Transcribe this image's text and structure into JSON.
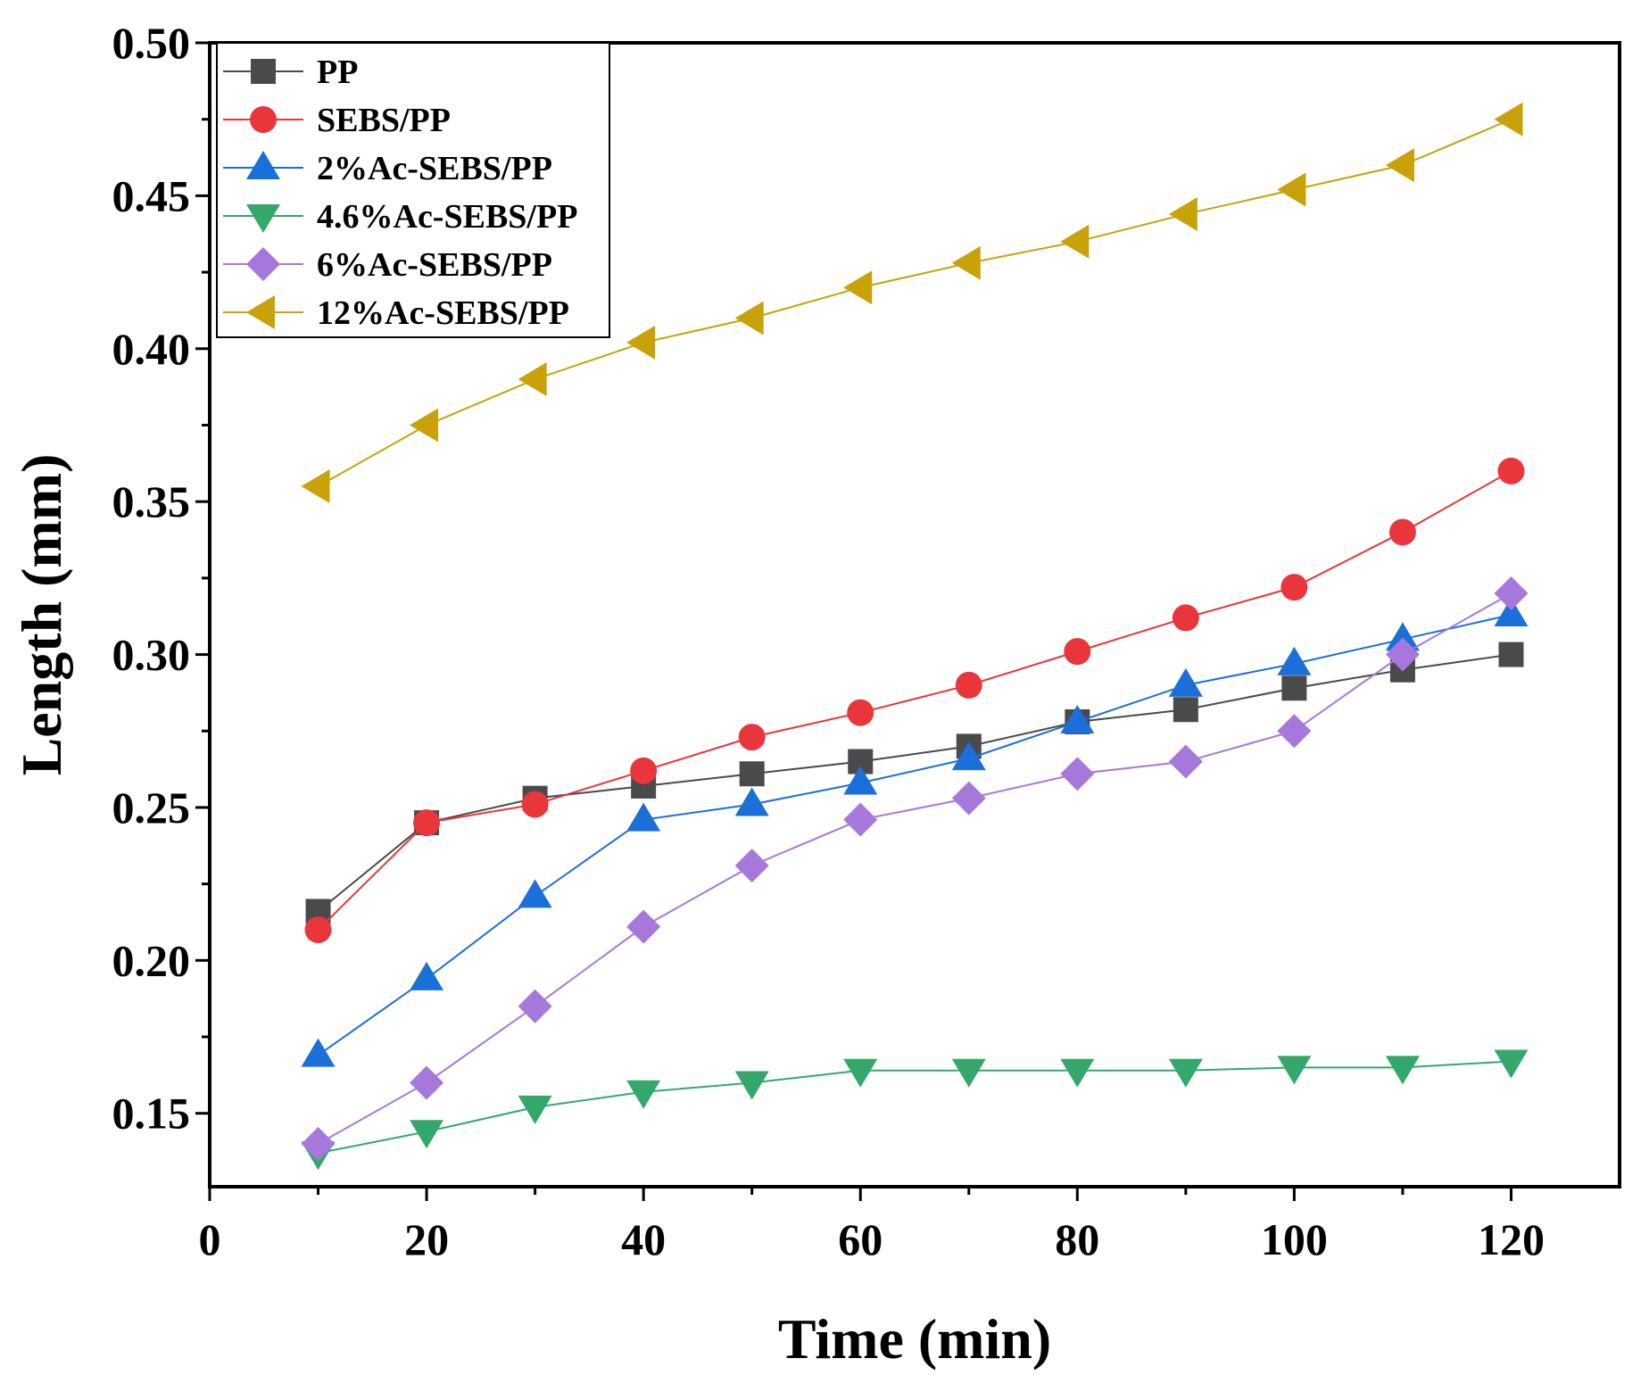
{
  "chart_data": {
    "type": "line",
    "title": "",
    "xlabel": "Time (min)",
    "ylabel": "Length (mm)",
    "xlim": [
      0,
      130
    ],
    "ylim": [
      0.126,
      0.5
    ],
    "xticks": [
      0,
      20,
      40,
      60,
      80,
      100,
      120
    ],
    "xtick_labels": [
      "0",
      "20",
      "40",
      "60",
      "80",
      "100",
      "120"
    ],
    "yticks": [
      0.15,
      0.2,
      0.25,
      0.3,
      0.35,
      0.4,
      0.45,
      0.5
    ],
    "ytick_labels": [
      "0.15",
      "0.20",
      "0.25",
      "0.30",
      "0.35",
      "0.40",
      "0.45",
      "0.50"
    ],
    "grid": false,
    "legend_position": "top-left",
    "x": [
      10,
      20,
      30,
      40,
      50,
      60,
      70,
      80,
      90,
      100,
      110,
      120
    ],
    "series": [
      {
        "name": "PP",
        "color": "#4a4a4a",
        "marker": "square",
        "values": [
          0.216,
          0.245,
          0.253,
          0.257,
          0.261,
          0.265,
          0.27,
          0.278,
          0.282,
          0.289,
          0.295,
          0.3
        ]
      },
      {
        "name": "SEBS/PP",
        "color": "#e8363a",
        "marker": "circle",
        "values": [
          0.21,
          0.245,
          0.251,
          0.262,
          0.273,
          0.281,
          0.29,
          0.301,
          0.312,
          0.322,
          0.34,
          0.36
        ]
      },
      {
        "name": "2%Ac-SEBS/PP",
        "color": "#1b6fd9",
        "marker": "triangle-up",
        "values": [
          0.169,
          0.194,
          0.221,
          0.246,
          0.251,
          0.258,
          0.266,
          0.278,
          0.29,
          0.297,
          0.305,
          0.313
        ]
      },
      {
        "name": "4.6%Ac-SEBS/PP",
        "color": "#34a86a",
        "marker": "triangle-down",
        "values": [
          0.137,
          0.144,
          0.152,
          0.157,
          0.16,
          0.164,
          0.164,
          0.164,
          0.164,
          0.165,
          0.165,
          0.167
        ]
      },
      {
        "name": "6%Ac-SEBS/PP",
        "color": "#a678dc",
        "marker": "diamond",
        "values": [
          0.14,
          0.16,
          0.185,
          0.211,
          0.231,
          0.246,
          0.253,
          0.261,
          0.265,
          0.275,
          0.3,
          0.32
        ]
      },
      {
        "name": "12%Ac-SEBS/PP",
        "color": "#c9a20a",
        "marker": "triangle-left",
        "values": [
          0.355,
          0.375,
          0.39,
          0.402,
          0.41,
          0.42,
          0.428,
          0.435,
          0.444,
          0.452,
          0.46,
          0.475
        ]
      }
    ]
  }
}
